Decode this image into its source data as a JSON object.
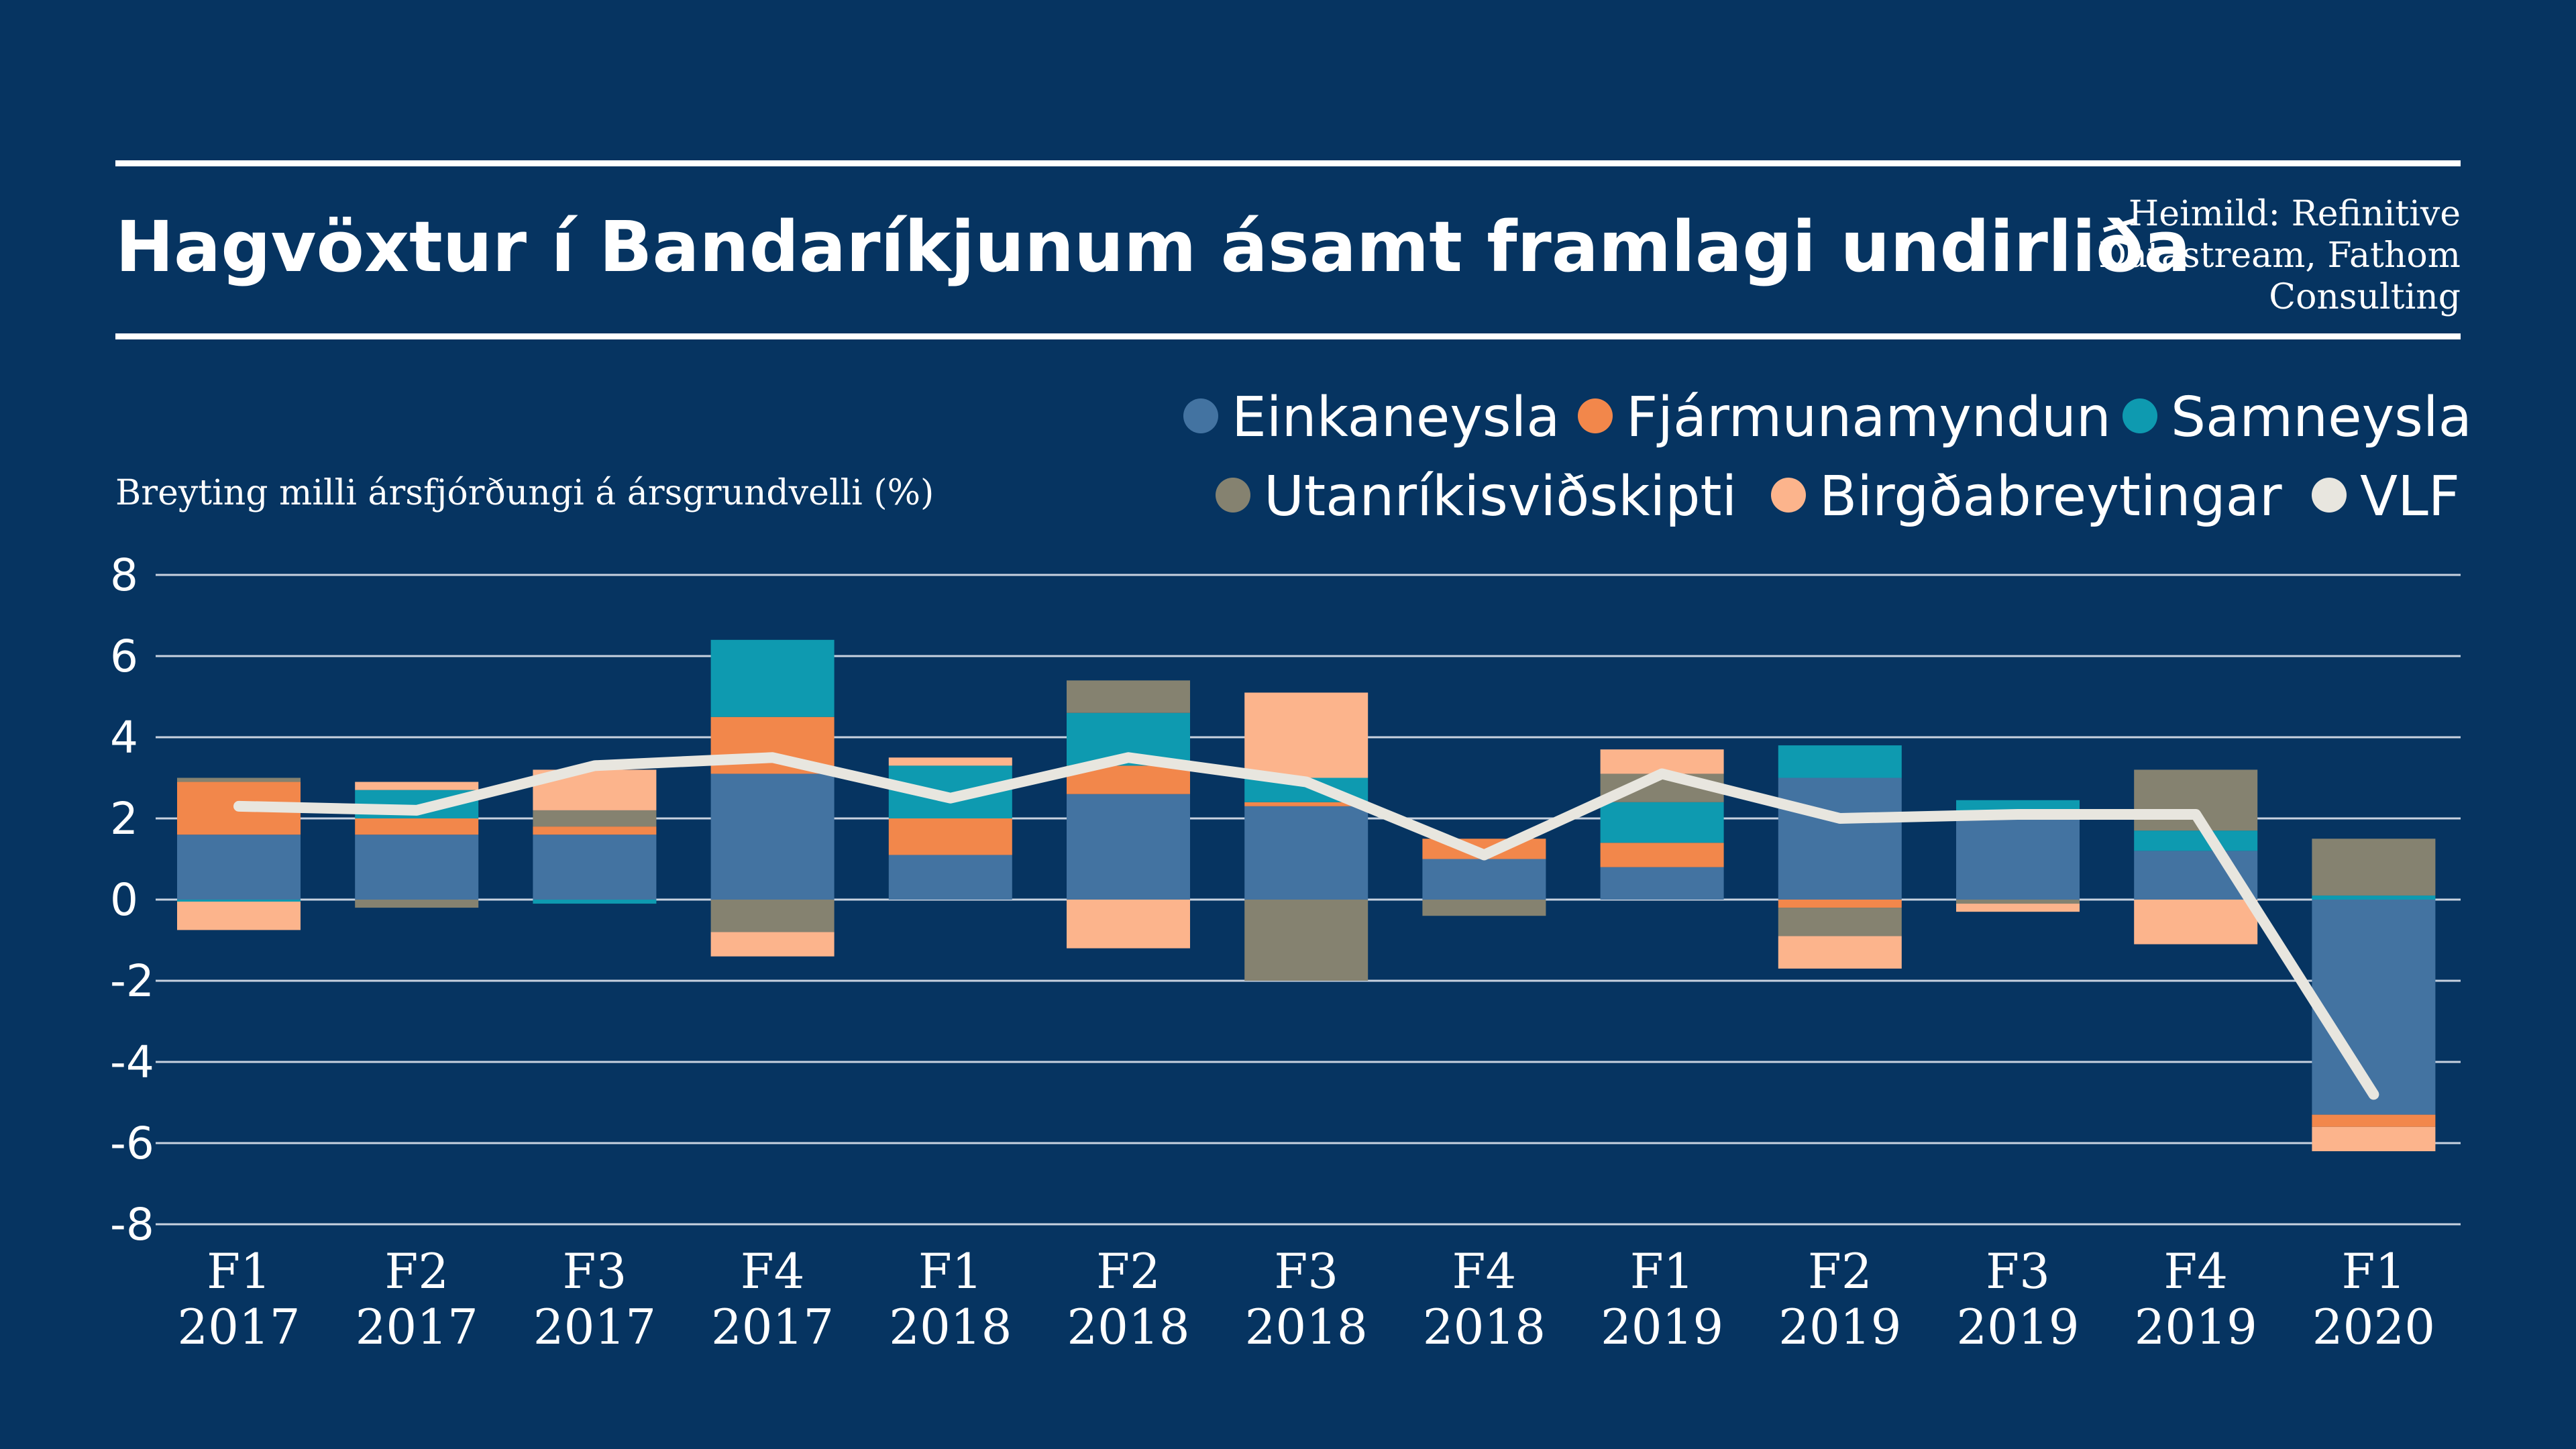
{
  "colors": {
    "background": "#063461",
    "text": "#ffffff",
    "rule": "#ffffff",
    "grid": "#c8d2e0",
    "Einkaneysla": "#4373a1",
    "Fjármunamyndun": "#f2874b",
    "Samneysla": "#0e9ab0",
    "Utanríkisviðskipti": "#858270",
    "Birgðabreytingar": "#fcb48c",
    "VLF": "#e8e6df"
  },
  "source": [
    "Heimild: Refinitive",
    "Datastream, Fathom",
    "Consulting"
  ],
  "chart_data": {
    "type": "bar",
    "stacked": true,
    "title": "Hagvöxtur í Bandaríkjunum ásamt framlagi undirliða",
    "ylabel": "Breyting milli ársfjórðungi á ársgrundvelli (%)",
    "xlabel": "",
    "ylim": [
      -8,
      8
    ],
    "yticks": [
      8,
      6,
      4,
      2,
      0,
      -2,
      -4,
      -6,
      -8
    ],
    "grid": true,
    "legend_position": "top-right",
    "categories": [
      [
        "F1",
        "2017"
      ],
      [
        "F2",
        "2017"
      ],
      [
        "F3",
        "2017"
      ],
      [
        "F4",
        "2017"
      ],
      [
        "F1",
        "2018"
      ],
      [
        "F2",
        "2018"
      ],
      [
        "F3",
        "2018"
      ],
      [
        "F4",
        "2018"
      ],
      [
        "F1",
        "2019"
      ],
      [
        "F2",
        "2019"
      ],
      [
        "F3",
        "2019"
      ],
      [
        "F4",
        "2019"
      ],
      [
        "F1",
        "2020"
      ]
    ],
    "series": [
      {
        "name": "Einkaneysla",
        "values": [
          1.6,
          1.6,
          1.6,
          3.1,
          1.1,
          2.6,
          2.3,
          1.0,
          0.8,
          3.0,
          2.1,
          1.2,
          -5.3
        ]
      },
      {
        "name": "Fjármunamyndun",
        "values": [
          1.3,
          0.4,
          0.2,
          1.4,
          0.9,
          0.7,
          0.1,
          0.5,
          0.6,
          -0.2,
          0.0,
          0.0,
          -0.3
        ]
      },
      {
        "name": "Samneysla",
        "values": [
          -0.05,
          0.7,
          -0.1,
          1.9,
          1.3,
          1.3,
          0.6,
          0.0,
          1.0,
          0.8,
          0.35,
          0.5,
          0.1
        ]
      },
      {
        "name": "Utanríkisviðskipti",
        "values": [
          0.1,
          -0.2,
          0.4,
          -0.8,
          0.0,
          0.8,
          -2.0,
          -0.4,
          0.7,
          -0.7,
          -0.1,
          1.5,
          1.4
        ]
      },
      {
        "name": "Birgðabreytingar",
        "values": [
          -0.7,
          0.2,
          1.0,
          -0.6,
          0.2,
          -1.2,
          2.1,
          0.0,
          0.6,
          -0.8,
          -0.2,
          -1.1,
          -0.6
        ]
      }
    ],
    "line": {
      "name": "VLF",
      "values": [
        2.3,
        2.2,
        3.3,
        3.5,
        2.5,
        3.5,
        2.9,
        1.1,
        3.1,
        2.0,
        2.1,
        2.1,
        -4.8
      ]
    }
  }
}
